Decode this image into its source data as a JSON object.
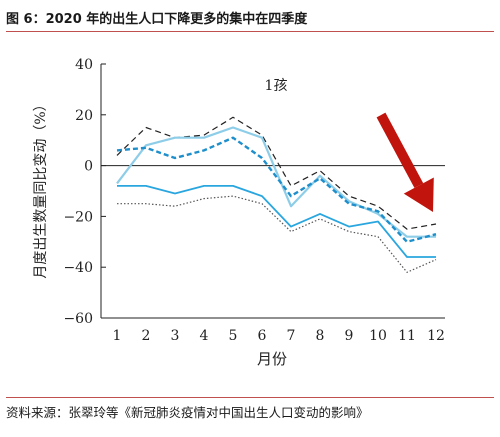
{
  "figure": {
    "title": "图 6：2020 年的出生人口下降更多的集中在四季度",
    "source": "资料来源：张翠玲等《新冠肺炎疫情对中国出生人口变动的影响》"
  },
  "chart_data": {
    "type": "line",
    "title": "1孩",
    "xlabel": "月份",
    "ylabel": "月度出生数量同比变动（%）",
    "x": [
      1,
      2,
      3,
      4,
      5,
      6,
      7,
      8,
      9,
      10,
      11,
      12
    ],
    "xticks": [
      "1",
      "2",
      "3",
      "4",
      "5",
      "6",
      "7",
      "8",
      "9",
      "10",
      "11",
      "12"
    ],
    "ylim": [
      -60,
      40
    ],
    "yticks": [
      "−60",
      "−40",
      "−20",
      "0",
      "20",
      "40"
    ],
    "ytick_values": [
      -60,
      -40,
      -20,
      0,
      20,
      40
    ],
    "grid": false,
    "legend": "none",
    "annotation": "red downward arrow pointing at months 11–12",
    "series": [
      {
        "style": "black-dashed",
        "color": "#222222",
        "values": [
          4,
          15,
          11,
          12,
          19,
          12,
          -8,
          -2,
          -12,
          -16,
          -25,
          -23
        ]
      },
      {
        "style": "light-blue-solid",
        "color": "#8ecde8",
        "values": [
          -7,
          8,
          11,
          11,
          15,
          11,
          -16,
          -4,
          -14,
          -19,
          -28,
          -28
        ]
      },
      {
        "style": "blue-dashed",
        "color": "#1f8fcb",
        "values": [
          6,
          7,
          3,
          6,
          11,
          3,
          -12,
          -5,
          -15,
          -18,
          -30,
          -27
        ]
      },
      {
        "style": "blue-solid",
        "color": "#2aa6df",
        "values": [
          -8,
          -8,
          -11,
          -8,
          -8,
          -12,
          -24,
          -19,
          -24,
          -22,
          -36,
          -36
        ]
      },
      {
        "style": "gray-dotted",
        "color": "#555555",
        "values": [
          -15,
          -15,
          -16,
          -13,
          -12,
          -15,
          -26,
          -21,
          -26,
          -28,
          -42,
          -37
        ]
      }
    ],
    "colors": {
      "arrow": "#c0140c",
      "rule": "#c0504d"
    }
  }
}
